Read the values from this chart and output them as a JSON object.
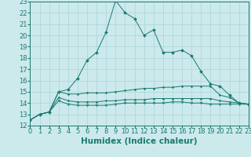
{
  "xlabel": "Humidex (Indice chaleur)",
  "x_values": [
    0,
    1,
    2,
    3,
    4,
    5,
    6,
    7,
    8,
    9,
    10,
    11,
    12,
    13,
    14,
    15,
    16,
    17,
    18,
    19,
    20,
    21,
    22,
    23
  ],
  "line1_y": [
    12.5,
    13.0,
    13.2,
    15.0,
    15.2,
    16.2,
    17.8,
    18.5,
    20.3,
    23.1,
    22.0,
    21.5,
    20.0,
    20.5,
    18.5,
    18.5,
    18.7,
    18.2,
    16.8,
    15.7,
    15.5,
    14.7,
    14.0,
    13.9
  ],
  "line2_y": [
    12.5,
    13.0,
    13.2,
    15.0,
    14.8,
    14.8,
    14.9,
    14.9,
    14.9,
    15.0,
    15.1,
    15.2,
    15.3,
    15.3,
    15.4,
    15.4,
    15.5,
    15.5,
    15.5,
    15.5,
    14.7,
    14.5,
    14.0,
    13.9
  ],
  "line3_y": [
    12.5,
    13.0,
    13.2,
    14.5,
    14.2,
    14.1,
    14.1,
    14.1,
    14.2,
    14.2,
    14.3,
    14.3,
    14.3,
    14.4,
    14.4,
    14.4,
    14.4,
    14.4,
    14.4,
    14.4,
    14.2,
    14.1,
    14.0,
    13.9
  ],
  "line4_y": [
    12.5,
    13.0,
    13.2,
    14.2,
    13.9,
    13.8,
    13.8,
    13.8,
    13.8,
    13.9,
    14.0,
    14.0,
    14.0,
    14.0,
    14.0,
    14.1,
    14.1,
    14.0,
    14.0,
    13.9,
    13.9,
    13.9,
    13.9,
    13.9
  ],
  "ylim": [
    12,
    23
  ],
  "xlim": [
    0,
    23
  ],
  "bg_color": "#cce9ec",
  "grid_color": "#b0d8dd",
  "line_color": "#1a7a6e",
  "tick_label_size": 6.0,
  "xlabel_size": 7.5
}
